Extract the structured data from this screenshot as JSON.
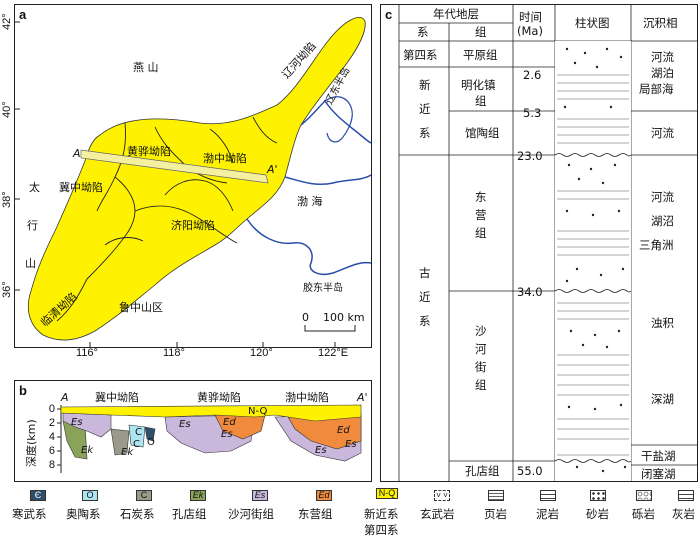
{
  "panel_a": {
    "label": "a",
    "lat_labels": [
      "42°",
      "40°",
      "38°",
      "36°"
    ],
    "lon_labels": [
      "116°",
      "118°",
      "120°",
      "122°E"
    ],
    "regions": {
      "yanshan": "燕 山",
      "liaohe": "辽河坳陷",
      "liaodong": "辽东半岛",
      "huanghua": "黄骅坳陷",
      "bozhong": "渤中坳陷",
      "jizhong": "冀中坳陷",
      "jiyang": "济阳坳陷",
      "linqing": "临清坳陷",
      "taihang": [
        "太",
        "行",
        "山"
      ],
      "bohai": "渤 海",
      "luzhong": "鲁中山区",
      "jiaodong": "胶东半岛"
    },
    "section_ends": [
      "A",
      "A'"
    ],
    "scale_zero": "0",
    "scale_label": "100 km"
  },
  "panel_b": {
    "label": "b",
    "section_ends": [
      "A",
      "A'"
    ],
    "region_labels": [
      "冀中坳陷",
      "黄骅坳陷",
      "渤中坳陷"
    ],
    "depth_axis_title": "深度(km)",
    "depth_ticks": [
      "0",
      "2",
      "4",
      "6",
      "8"
    ],
    "unit_labels": [
      "N-Q",
      "Ed",
      "Es",
      "Es",
      "Ek",
      "Ek",
      "C",
      "C",
      "O",
      "Es",
      "Es",
      "Ed",
      "Es"
    ]
  },
  "panel_c": {
    "label": "c",
    "header": {
      "strata": "年代地层",
      "system": "系",
      "group": "组",
      "time": "时间\n(Ma)",
      "column": "柱状图",
      "facies": "沉积相"
    },
    "systems": [
      "第四系",
      "新\n近\n系",
      "古\n近\n系"
    ],
    "groups": [
      "平原组",
      "明化镇\n组",
      "馆陶组",
      "东\n营\n组",
      "沙\n河\n街\n组",
      "孔店组"
    ],
    "ages": [
      "2.6",
      "5.3",
      "23.0",
      "34.0",
      "55.0"
    ],
    "facies": [
      "河流\n湖泊\n局部海",
      "河流",
      "河流\n湖沼\n三角洲",
      "浊积",
      "深湖",
      "干盐湖",
      "闭塞湖"
    ]
  },
  "legend": [
    {
      "symbol": "Є",
      "label": "寒武系",
      "color": "#2e4f6b"
    },
    {
      "symbol": "O",
      "label": "奥陶系",
      "color": "#aee4f2"
    },
    {
      "symbol": "C",
      "label": "石炭系",
      "color": "#9a9a8c"
    },
    {
      "symbol": "Ek",
      "label": "孔店组",
      "color": "#8aa35a"
    },
    {
      "symbol": "Es",
      "label": "沙河街组",
      "color": "#c9b8dc"
    },
    {
      "symbol": "Ed",
      "label": "东营组",
      "color": "#f08a3c"
    },
    {
      "symbol": "N-Q",
      "label": "新近系\n第四系",
      "color": "#fef200"
    },
    {
      "symbol": "",
      "label": "玄武岩",
      "color": "#ffffff"
    },
    {
      "symbol": "",
      "label": "页岩",
      "color": "#ffffff"
    },
    {
      "symbol": "",
      "label": "泥岩",
      "color": "#ffffff"
    },
    {
      "symbol": "",
      "label": "砂岩",
      "color": "#ffffff"
    },
    {
      "symbol": "",
      "label": "砾岩",
      "color": "#ffffff"
    },
    {
      "symbol": "",
      "label": "灰岩",
      "color": "#ffffff"
    }
  ],
  "colors": {
    "basin_fill": "#fef200",
    "coast_line": "#2a4ea8",
    "fault_line": "#222222",
    "section_band": "#f4f0a0"
  }
}
